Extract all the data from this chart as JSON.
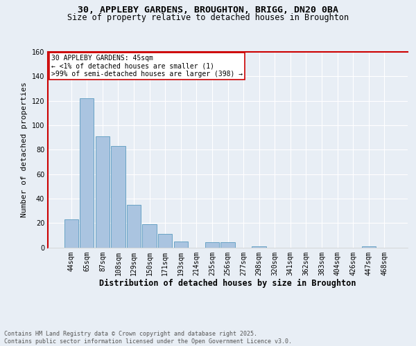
{
  "title_line1": "30, APPLEBY GARDENS, BROUGHTON, BRIGG, DN20 0BA",
  "title_line2": "Size of property relative to detached houses in Broughton",
  "xlabel": "Distribution of detached houses by size in Broughton",
  "ylabel": "Number of detached properties",
  "categories": [
    "44sqm",
    "65sqm",
    "87sqm",
    "108sqm",
    "129sqm",
    "150sqm",
    "171sqm",
    "193sqm",
    "214sqm",
    "235sqm",
    "256sqm",
    "277sqm",
    "298sqm",
    "320sqm",
    "341sqm",
    "362sqm",
    "383sqm",
    "404sqm",
    "426sqm",
    "447sqm",
    "468sqm"
  ],
  "values": [
    23,
    122,
    91,
    83,
    35,
    19,
    11,
    5,
    0,
    4,
    4,
    0,
    1,
    0,
    0,
    0,
    0,
    0,
    0,
    1,
    0
  ],
  "bar_color": "#aac4e0",
  "bar_edge_color": "#5a9abf",
  "highlight_color": "#cc0000",
  "ylim": [
    0,
    160
  ],
  "yticks": [
    0,
    20,
    40,
    60,
    80,
    100,
    120,
    140,
    160
  ],
  "annotation_box_text": "30 APPLEBY GARDENS: 45sqm\n← <1% of detached houses are smaller (1)\n>99% of semi-detached houses are larger (398) →",
  "footnote": "Contains HM Land Registry data © Crown copyright and database right 2025.\nContains public sector information licensed under the Open Government Licence v3.0.",
  "background_color": "#e8eef5",
  "plot_background": "#e8eef5",
  "grid_color": "#ffffff",
  "title_fontsize": 9.5,
  "subtitle_fontsize": 8.5,
  "label_fontsize": 8,
  "tick_fontsize": 7,
  "annotation_fontsize": 7,
  "footnote_fontsize": 6
}
